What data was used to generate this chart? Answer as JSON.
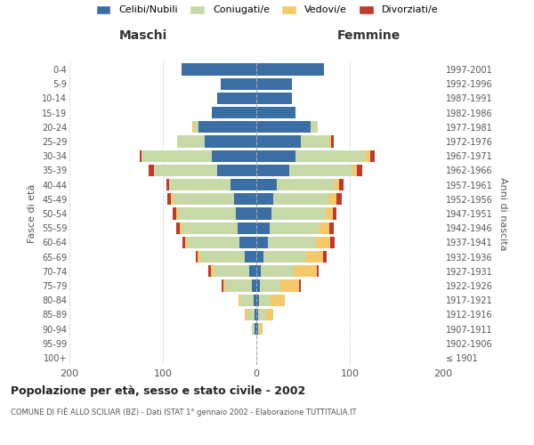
{
  "age_groups": [
    "100+",
    "95-99",
    "90-94",
    "85-89",
    "80-84",
    "75-79",
    "70-74",
    "65-69",
    "60-64",
    "55-59",
    "50-54",
    "45-49",
    "40-44",
    "35-39",
    "30-34",
    "25-29",
    "20-24",
    "15-19",
    "10-14",
    "5-9",
    "0-4"
  ],
  "birth_years": [
    "≤ 1901",
    "1902-1906",
    "1907-1911",
    "1912-1916",
    "1917-1921",
    "1922-1926",
    "1927-1931",
    "1932-1936",
    "1937-1941",
    "1942-1946",
    "1947-1951",
    "1952-1956",
    "1957-1961",
    "1962-1966",
    "1967-1971",
    "1972-1976",
    "1977-1981",
    "1982-1986",
    "1987-1991",
    "1992-1996",
    "1997-2001"
  ],
  "male_celibe": [
    0,
    0,
    2,
    2,
    3,
    5,
    8,
    12,
    18,
    20,
    22,
    24,
    28,
    42,
    48,
    55,
    62,
    48,
    42,
    38,
    80
  ],
  "male_coniugato": [
    0,
    0,
    3,
    8,
    14,
    28,
    38,
    48,
    56,
    60,
    62,
    65,
    65,
    68,
    75,
    30,
    5,
    0,
    0,
    0,
    0
  ],
  "male_vedovo": [
    0,
    0,
    0,
    2,
    2,
    2,
    3,
    3,
    2,
    2,
    2,
    2,
    0,
    0,
    0,
    0,
    2,
    0,
    0,
    0,
    0
  ],
  "male_divorziato": [
    0,
    0,
    0,
    0,
    0,
    2,
    2,
    2,
    3,
    4,
    4,
    4,
    3,
    5,
    2,
    0,
    0,
    0,
    0,
    0,
    0
  ],
  "female_celibe": [
    0,
    0,
    2,
    2,
    3,
    4,
    5,
    8,
    12,
    14,
    16,
    18,
    22,
    35,
    42,
    48,
    58,
    42,
    38,
    38,
    72
  ],
  "female_coniugata": [
    0,
    0,
    2,
    8,
    12,
    22,
    35,
    45,
    52,
    54,
    58,
    60,
    62,
    68,
    75,
    30,
    8,
    0,
    0,
    0,
    0
  ],
  "female_vedova": [
    0,
    0,
    3,
    8,
    15,
    20,
    25,
    18,
    15,
    10,
    8,
    8,
    5,
    5,
    5,
    2,
    0,
    0,
    0,
    0,
    0
  ],
  "female_divorziata": [
    0,
    0,
    0,
    0,
    0,
    2,
    2,
    4,
    5,
    5,
    4,
    5,
    4,
    5,
    5,
    3,
    0,
    0,
    0,
    0,
    0
  ],
  "color_celibe": "#3a6ea5",
  "color_coniugato": "#c8d9a8",
  "color_vedovo": "#f5c96a",
  "color_divorziato": "#c0392b",
  "title": "Popolazione per età, sesso e stato civile - 2002",
  "subtitle": "COMUNE DI FIÈ ALLO SCILIAR (BZ) - Dati ISTAT 1° gennaio 2002 - Elaborazione TUTTITALIA.IT",
  "xlabel_left": "Maschi",
  "xlabel_right": "Femmine",
  "ylabel_left": "Fasce di età",
  "ylabel_right": "Anni di nascita",
  "xlim": 200,
  "legend_labels": [
    "Celibi/Nubili",
    "Coniugati/e",
    "Vedovi/e",
    "Divorziati/e"
  ],
  "bg_color": "#f5f5f5"
}
